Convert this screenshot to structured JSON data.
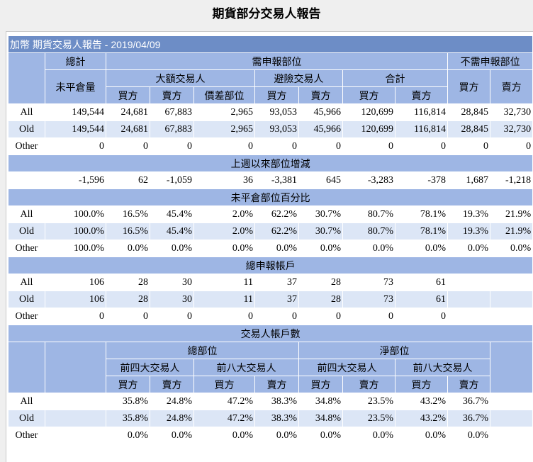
{
  "title": "期貨部分交易人報告",
  "caption": "加幣 期貨交易人報告 - 2019/04/09",
  "headers": {
    "total": "總計",
    "reportable": "需申報部位",
    "nonreportable": "不需申報部位",
    "open_interest": "未平倉量",
    "large_traders": "大額交易人",
    "hedgers": "避險交易人",
    "sum": "合計",
    "buy": "買方",
    "sell": "賣方",
    "spread": "價差部位"
  },
  "positions": [
    {
      "label": "All",
      "values": [
        "149,544",
        "24,681",
        "67,883",
        "2,965",
        "93,053",
        "45,966",
        "120,699",
        "116,814",
        "28,845",
        "32,730"
      ]
    },
    {
      "label": "Old",
      "values": [
        "149,544",
        "24,681",
        "67,883",
        "2,965",
        "93,053",
        "45,966",
        "120,699",
        "116,814",
        "28,845",
        "32,730"
      ]
    },
    {
      "label": "Other",
      "values": [
        "0",
        "0",
        "0",
        "0",
        "0",
        "0",
        "0",
        "0",
        "0",
        "0"
      ]
    }
  ],
  "change_section": "上週以來部位增減",
  "changes": {
    "label": "",
    "values": [
      "-1,596",
      "62",
      "-1,059",
      "36",
      "-3,381",
      "645",
      "-3,283",
      "-378",
      "1,687",
      "-1,218"
    ]
  },
  "percent_section": "未平倉部位百分比",
  "percents": [
    {
      "label": "All",
      "values": [
        "100.0%",
        "16.5%",
        "45.4%",
        "2.0%",
        "62.2%",
        "30.7%",
        "80.7%",
        "78.1%",
        "19.3%",
        "21.9%"
      ]
    },
    {
      "label": "Old",
      "values": [
        "100.0%",
        "16.5%",
        "45.4%",
        "2.0%",
        "62.2%",
        "30.7%",
        "80.7%",
        "78.1%",
        "19.3%",
        "21.9%"
      ]
    },
    {
      "label": "Other",
      "values": [
        "100.0%",
        "0.0%",
        "0.0%",
        "0.0%",
        "0.0%",
        "0.0%",
        "0.0%",
        "0.0%",
        "0.0%",
        "0.0%"
      ]
    }
  ],
  "accounts_section": "總申報帳戶",
  "accounts": [
    {
      "label": "All",
      "values": [
        "106",
        "28",
        "30",
        "11",
        "37",
        "28",
        "73",
        "61",
        "",
        ""
      ]
    },
    {
      "label": "Old",
      "values": [
        "106",
        "28",
        "30",
        "11",
        "37",
        "28",
        "73",
        "61",
        "",
        ""
      ]
    },
    {
      "label": "Other",
      "values": [
        "0",
        "0",
        "0",
        "0",
        "0",
        "0",
        "0",
        "0",
        "",
        ""
      ]
    }
  ],
  "concentration_section": "交易人帳戶數",
  "concentration_headers": {
    "gross": "總部位",
    "net": "淨部位",
    "top4": "前四大交易人",
    "top8": "前八大交易人"
  },
  "concentration": [
    {
      "label": "All",
      "values": [
        "35.8%",
        "24.8%",
        "47.2%",
        "38.3%",
        "34.8%",
        "23.5%",
        "43.2%",
        "36.7%"
      ]
    },
    {
      "label": "Old",
      "values": [
        "35.8%",
        "24.8%",
        "47.2%",
        "38.3%",
        "34.8%",
        "23.5%",
        "43.2%",
        "36.7%"
      ]
    },
    {
      "label": "Other",
      "values": [
        "0.0%",
        "0.0%",
        "0.0%",
        "0.0%",
        "0.0%",
        "0.0%",
        "0.0%",
        "0.0%"
      ]
    }
  ]
}
